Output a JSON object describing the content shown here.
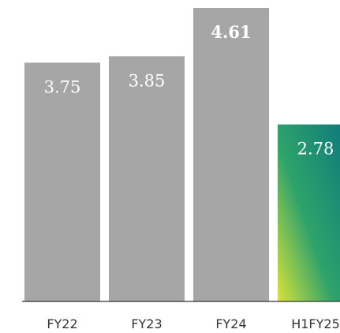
{
  "chart_data": {
    "type": "bar",
    "categories": [
      "FY22",
      "FY23",
      "FY24",
      "H1FY25"
    ],
    "values": [
      3.75,
      3.85,
      4.61,
      2.78
    ],
    "data_labels": [
      "3.75",
      "3.85",
      "4.61",
      "2.78"
    ],
    "highlight_index": 3,
    "emphasis_index": 2,
    "ylim": [
      0,
      4.61
    ],
    "grid": false,
    "title": "",
    "xlabel": "",
    "ylabel": "",
    "colors": {
      "bar": "#a6a6a6",
      "highlight_start": "#d8e33a",
      "highlight_mid": "#2fa36b",
      "highlight_end": "#107d7a",
      "label": "#ffffff",
      "axis": "#333333",
      "tick_text": "#333333"
    }
  }
}
